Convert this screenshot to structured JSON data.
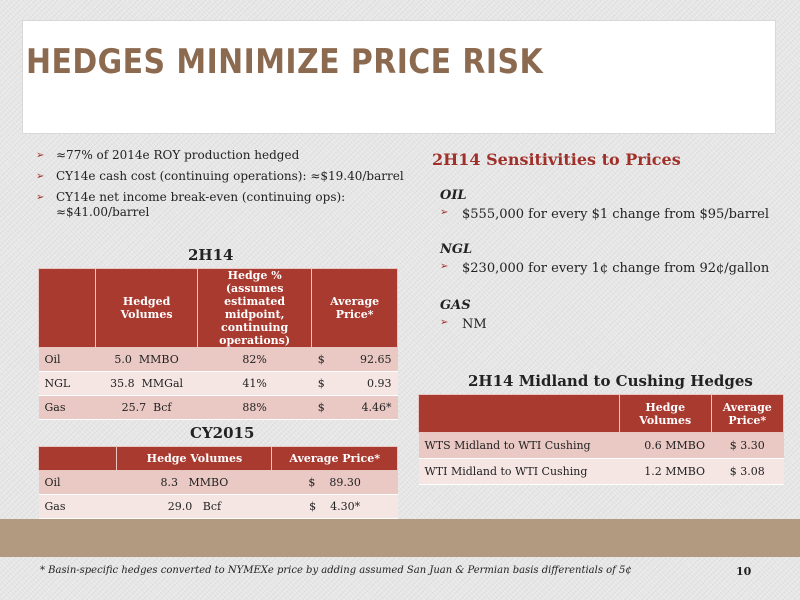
{
  "title": "Hedges Minimize Price Risk",
  "bullets": [
    "≈77% of 2014e ROY production hedged",
    "CY14e cash cost (continuing operations): ≈$19.40/barrel",
    "CY14e net income break-even (continuing ops): ≈$41.00/barrel"
  ],
  "h2_title": "2H14",
  "h2_table": {
    "headers": [
      "",
      "Hedged Volumes",
      "Hedge % (assumes estimated midpoint, continuing operations)",
      "Average Price*"
    ],
    "rows": [
      {
        "name": "Oil",
        "vol": "5.0",
        "unit": "MMBO",
        "pct": "82%",
        "cur": "$",
        "price": "92.65"
      },
      {
        "name": "NGL",
        "vol": "35.8",
        "unit": "MMGal",
        "pct": "41%",
        "cur": "$",
        "price": "0.93"
      },
      {
        "name": "Gas",
        "vol": "25.7",
        "unit": "Bcf",
        "pct": "88%",
        "cur": "$",
        "price": "4.46*"
      }
    ]
  },
  "cy_title": "CY2015",
  "cy_table": {
    "headers": [
      "",
      "Hedge Volumes",
      "Average Price*"
    ],
    "rows": [
      {
        "name": "Oil",
        "vol": "8.3",
        "unit": "MMBO",
        "cur": "$",
        "price": "89.30"
      },
      {
        "name": "Gas",
        "vol": "29.0",
        "unit": "Bcf",
        "cur": "$",
        "price": "4.30*"
      }
    ]
  },
  "sens_title": "2H14 Sensitivities to Prices",
  "sensitivities": [
    {
      "label": "OIL",
      "text": "$555,000 for every $1 change from $95/barrel"
    },
    {
      "label": "NGL",
      "text": "$230,000 for every 1¢ change from 92¢/gallon"
    },
    {
      "label": "GAS",
      "text": "NM"
    }
  ],
  "midland_title": "2H14 Midland to Cushing Hedges",
  "midland_table": {
    "headers": [
      "",
      "Hedge Volumes",
      "Average Price*"
    ],
    "rows": [
      {
        "name": "WTS Midland to WTI Cushing",
        "vol": "0.6 MMBO",
        "price": "$ 3.30"
      },
      {
        "name": "WTI Midland to WTI Cushing",
        "vol": "1.2 MMBO",
        "price": "$ 3.08"
      }
    ]
  },
  "footnote": "* Basin-specific hedges converted to NYMEXe price by adding assumed San Juan & Permian basis differentials of 5¢",
  "page_number": "10"
}
